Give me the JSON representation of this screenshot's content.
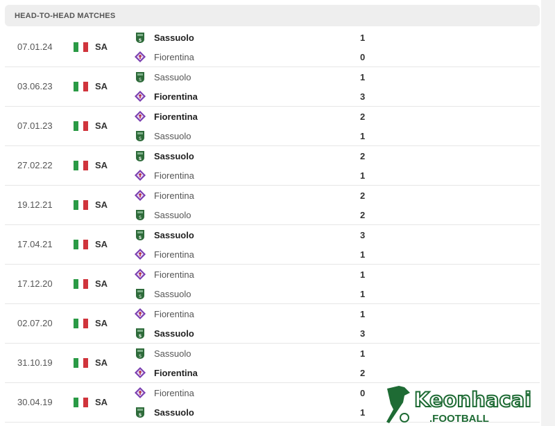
{
  "header": {
    "title": "HEAD-TO-HEAD MATCHES"
  },
  "colors": {
    "sassuolo": "#2e6b3a",
    "fiorentina": "#7b3fb0",
    "flag_green": "#2a9a45",
    "flag_red": "#d0343c",
    "watermark": "#1e6b34"
  },
  "watermark": {
    "text1": "Keonhacai",
    "text2": ".FOOTBALL"
  },
  "matches": [
    {
      "date": "07.01.24",
      "league": "SA",
      "home": {
        "name": "Sassuolo",
        "score": "1",
        "win": true
      },
      "away": {
        "name": "Fiorentina",
        "score": "0",
        "win": false
      }
    },
    {
      "date": "03.06.23",
      "league": "SA",
      "home": {
        "name": "Sassuolo",
        "score": "1",
        "win": false
      },
      "away": {
        "name": "Fiorentina",
        "score": "3",
        "win": true
      }
    },
    {
      "date": "07.01.23",
      "league": "SA",
      "home": {
        "name": "Fiorentina",
        "score": "2",
        "win": true
      },
      "away": {
        "name": "Sassuolo",
        "score": "1",
        "win": false
      }
    },
    {
      "date": "27.02.22",
      "league": "SA",
      "home": {
        "name": "Sassuolo",
        "score": "2",
        "win": true
      },
      "away": {
        "name": "Fiorentina",
        "score": "1",
        "win": false
      }
    },
    {
      "date": "19.12.21",
      "league": "SA",
      "home": {
        "name": "Fiorentina",
        "score": "2",
        "win": false
      },
      "away": {
        "name": "Sassuolo",
        "score": "2",
        "win": false
      }
    },
    {
      "date": "17.04.21",
      "league": "SA",
      "home": {
        "name": "Sassuolo",
        "score": "3",
        "win": true
      },
      "away": {
        "name": "Fiorentina",
        "score": "1",
        "win": false
      }
    },
    {
      "date": "17.12.20",
      "league": "SA",
      "home": {
        "name": "Fiorentina",
        "score": "1",
        "win": false
      },
      "away": {
        "name": "Sassuolo",
        "score": "1",
        "win": false
      }
    },
    {
      "date": "02.07.20",
      "league": "SA",
      "home": {
        "name": "Fiorentina",
        "score": "1",
        "win": false
      },
      "away": {
        "name": "Sassuolo",
        "score": "3",
        "win": true
      }
    },
    {
      "date": "31.10.19",
      "league": "SA",
      "home": {
        "name": "Sassuolo",
        "score": "1",
        "win": false
      },
      "away": {
        "name": "Fiorentina",
        "score": "2",
        "win": true
      }
    },
    {
      "date": "30.04.19",
      "league": "SA",
      "home": {
        "name": "Fiorentina",
        "score": "0",
        "win": false
      },
      "away": {
        "name": "Sassuolo",
        "score": "1",
        "win": true
      }
    }
  ]
}
